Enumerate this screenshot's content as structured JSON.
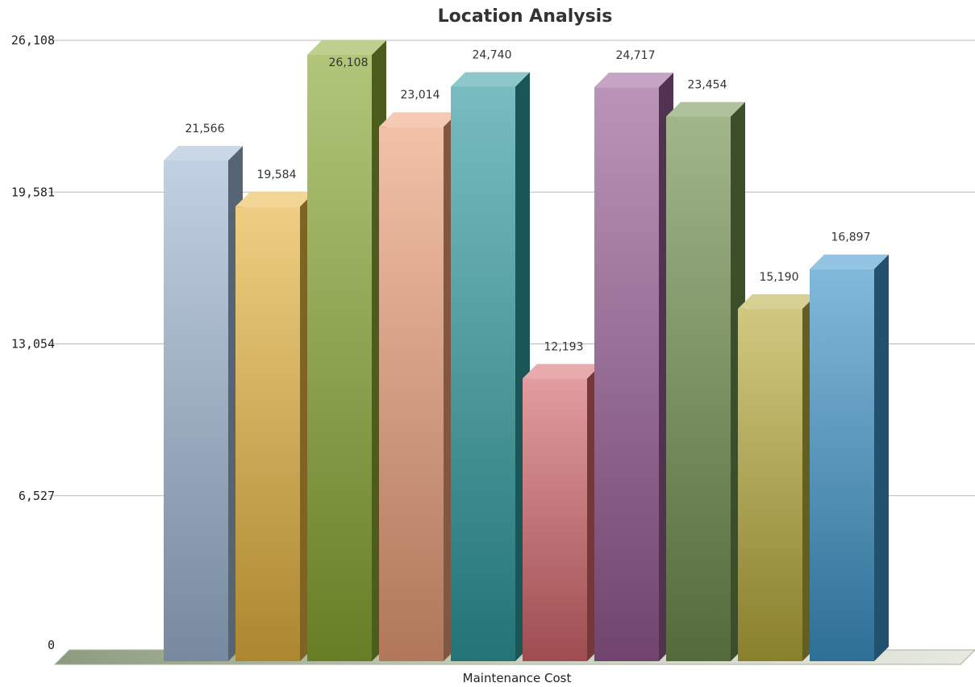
{
  "chart_data": {
    "type": "bar",
    "style": "3d",
    "title": "Location Analysis",
    "xlabel": "Maintenance Cost",
    "ylabel": "",
    "categories": [
      "Maintenance Cost"
    ],
    "ylim": [
      0,
      26108
    ],
    "yticks": [
      0,
      6527,
      13054,
      19581,
      26108
    ],
    "ytick_labels": [
      "0",
      "6,527",
      "13,054",
      "19,581",
      "26,108"
    ],
    "grid": true,
    "legend": "none",
    "series": [
      {
        "value": 21566,
        "label": "21,566",
        "color": "#9fb6d2"
      },
      {
        "value": 19584,
        "label": "19,584",
        "color": "#e5b43f"
      },
      {
        "value": 26108,
        "label": "26,108",
        "color": "#89a832"
      },
      {
        "value": 23014,
        "label": "23,014",
        "color": "#eb9f78"
      },
      {
        "value": 24740,
        "label": "24,740",
        "color": "#2f9a9e"
      },
      {
        "value": 12193,
        "label": "12,193",
        "color": "#d3666c"
      },
      {
        "value": 24717,
        "label": "24,717",
        "color": "#955a93"
      },
      {
        "value": 23454,
        "label": "23,454",
        "color": "#6f8e4d"
      },
      {
        "value": 15190,
        "label": "15,190",
        "color": "#b6aa3a"
      },
      {
        "value": 16897,
        "label": "16,897",
        "color": "#3d94c8"
      }
    ]
  }
}
